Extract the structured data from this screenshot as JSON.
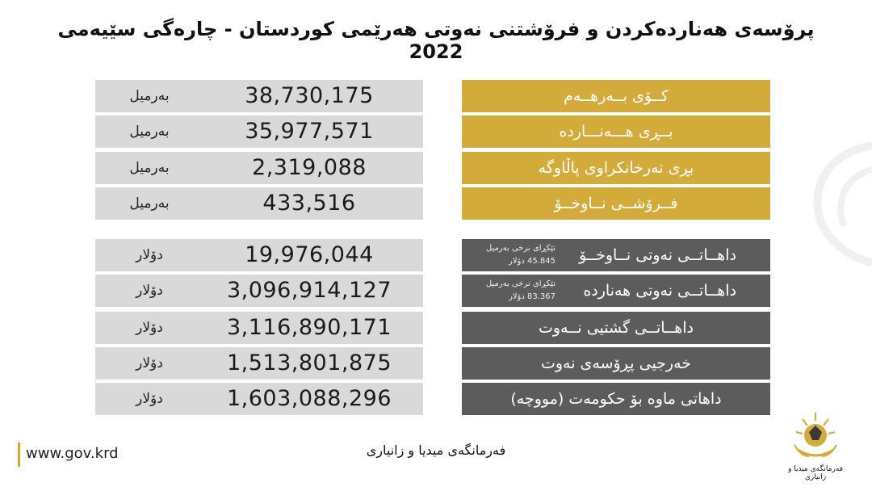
{
  "title": "پرۆسەی هەناردەکردن و فرۆشتنی نەوتی هەرێمی کوردستان - چارەگی سێیەمی 2022",
  "units": {
    "barrel": "بەرمیل",
    "dollar": "دۆلار"
  },
  "barrel_rows": [
    {
      "label": "کــۆی بــەرهــەم",
      "value": "38,730,175"
    },
    {
      "label": "بــڕی هـــەنـــاردە",
      "value": "35,977,571"
    },
    {
      "label": "بڕی تەرخانکراوی پاڵاوگە",
      "value": "2,319,088"
    },
    {
      "label": "فــرۆشــی نــاوخــۆ",
      "value": "433,516"
    }
  ],
  "dollar_rows": [
    {
      "label": "داهــاتــی نەوتی نــاوخــۆ",
      "value": "19,976,044",
      "rate_line1": "تێکڕای نرخی بەرمیل",
      "rate_line2": "45.845 دۆلار"
    },
    {
      "label": "داهــاتــی نەوتی هەناردە",
      "value": "3,096,914,127",
      "rate_line1": "تێکڕای نرخی بەرمیل",
      "rate_line2": "83.367 دۆلار"
    },
    {
      "label": "داهــاتــی گشتیی نــەوت",
      "value": "3,116,890,171"
    },
    {
      "label": "خەرجیی پڕۆسەی نەوت",
      "value": "1,513,801,875"
    },
    {
      "label": "داهاتی ماوە بۆ حکومەت (مووچە)",
      "value": "1,603,088,296"
    }
  ],
  "footer": {
    "website": "www.gov.krd",
    "department": "فەرمانگەی میدیا و زانیاری",
    "logo_caption": "فەرمانگەی میدیا و زانیاری"
  },
  "colors": {
    "gold": "#d2ab3a",
    "dark": "#5c5c5c",
    "light": "#d9d9d9"
  }
}
